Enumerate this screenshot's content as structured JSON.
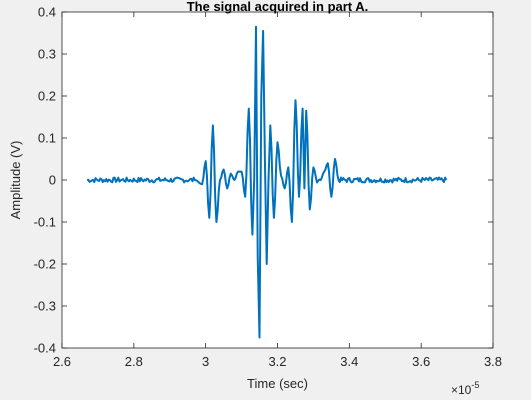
{
  "chart_data": {
    "type": "line",
    "title": "The signal acquired in part A.",
    "xlabel": "Time (sec)",
    "ylabel": "Amplitude (V)",
    "x_exponent_label": "×10",
    "x_exponent_power": "-5",
    "xlim": [
      2.6,
      3.8
    ],
    "ylim": [
      -0.4,
      0.4
    ],
    "x_ticks": [
      2.6,
      2.8,
      3.0,
      3.2,
      3.4,
      3.6,
      3.8
    ],
    "x_tick_labels": [
      "2.6",
      "2.8",
      "3",
      "3.2",
      "3.4",
      "3.6",
      "3.8"
    ],
    "y_ticks": [
      -0.4,
      -0.3,
      -0.2,
      -0.1,
      0,
      0.1,
      0.2,
      0.3,
      0.4
    ],
    "y_tick_labels": [
      "-0.4",
      "-0.3",
      "-0.2",
      "-0.1",
      "0",
      "0.1",
      "0.2",
      "0.3",
      "0.4"
    ],
    "grid": false,
    "line_color": "#0072bd",
    "series": [
      {
        "x": [
          2.67,
          2.72,
          2.77,
          2.82,
          2.87,
          2.92,
          2.97,
          2.99,
          3.0,
          3.01,
          3.02,
          3.03,
          3.04,
          3.05,
          3.06,
          3.07,
          3.08,
          3.09,
          3.1,
          3.11,
          3.12,
          3.13,
          3.135,
          3.14,
          3.145,
          3.15,
          3.155,
          3.16,
          3.165,
          3.17,
          3.175,
          3.18,
          3.19,
          3.2,
          3.21,
          3.22,
          3.23,
          3.24,
          3.25,
          3.26,
          3.27,
          3.275,
          3.28,
          3.29,
          3.3,
          3.31,
          3.32,
          3.33,
          3.34,
          3.35,
          3.36,
          3.37,
          3.4,
          3.45,
          3.5,
          3.55,
          3.6,
          3.65,
          3.67
        ],
        "y": [
          0.0,
          0.0,
          0.0,
          0.0,
          0.0,
          0.0,
          0.0,
          -0.01,
          0.045,
          -0.09,
          0.13,
          -0.1,
          0.0,
          0.025,
          -0.02,
          0.015,
          0.0,
          0.02,
          0.02,
          -0.04,
          0.17,
          -0.13,
          0.0,
          0.365,
          -0.18,
          -0.375,
          0.2,
          0.355,
          0.05,
          -0.2,
          0.0,
          0.13,
          -0.09,
          0.09,
          0.01,
          -0.02,
          0.03,
          -0.1,
          0.19,
          -0.04,
          0.17,
          -0.02,
          0.165,
          -0.07,
          0.03,
          0.0,
          0.0,
          0.02,
          0.04,
          -0.04,
          0.05,
          0.0,
          0.0,
          0.0,
          0.0,
          0.0,
          0.0,
          0.0,
          0.0
        ]
      }
    ]
  }
}
